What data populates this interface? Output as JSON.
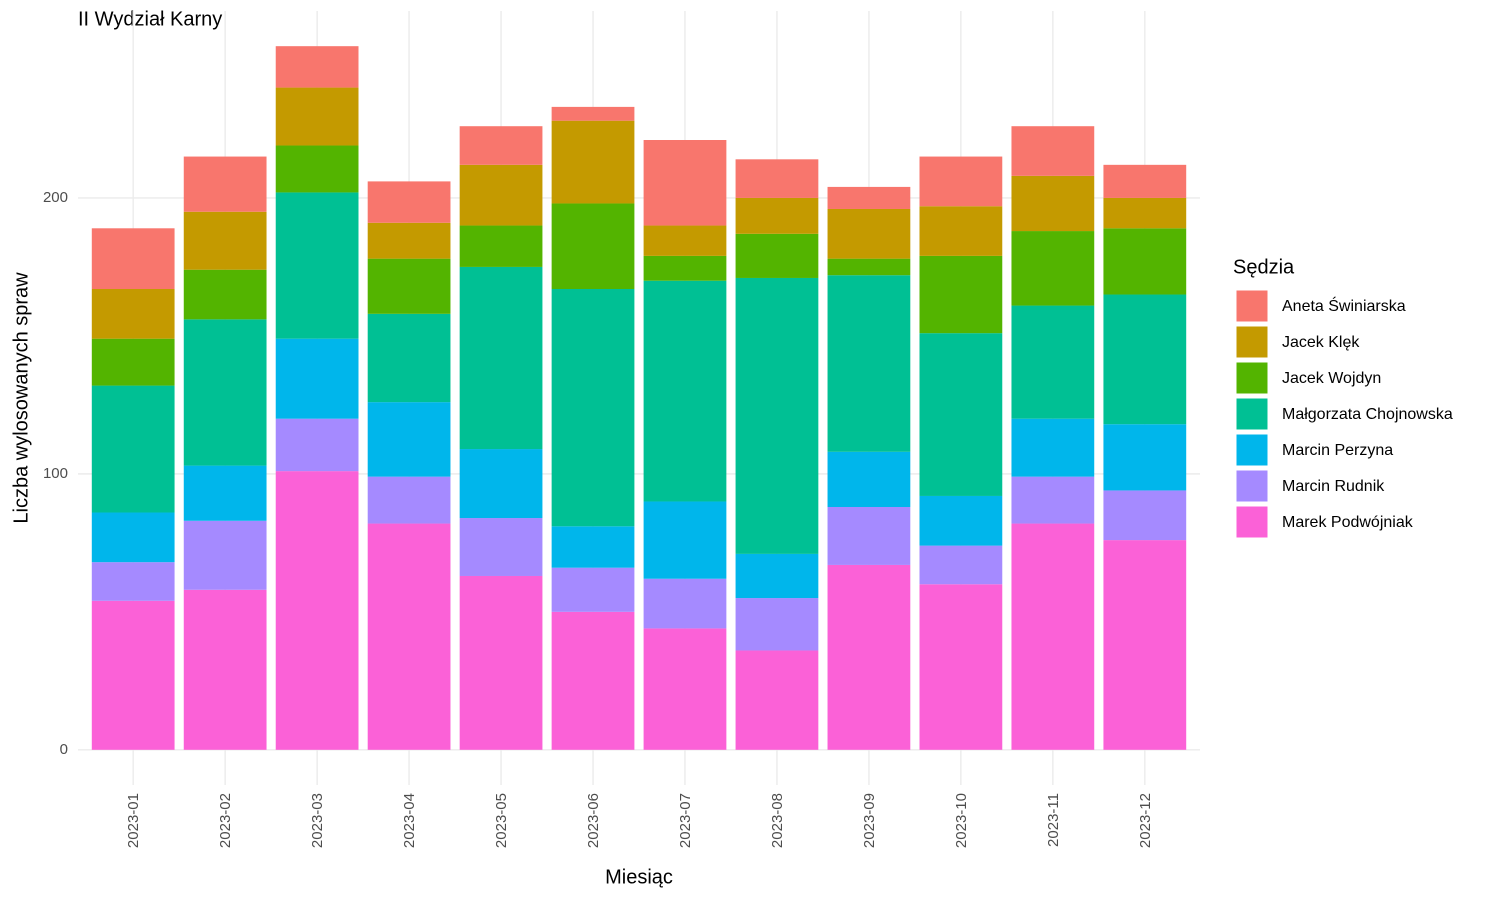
{
  "chart_data": {
    "type": "stacked_bar",
    "title": "II Wydział Karny",
    "x_label": "Miesiąc",
    "y_label": "Liczba wylosowanych spraw",
    "legend_title": "Sędzia",
    "categories": [
      "2023-01",
      "2023-02",
      "2023-03",
      "2023-04",
      "2023-05",
      "2023-06",
      "2023-07",
      "2023-08",
      "2023-09",
      "2023-10",
      "2023-11",
      "2023-12"
    ],
    "series": [
      {
        "name": "Aneta Świniarska",
        "color": "#F8766D",
        "values": [
          22,
          20,
          15,
          15,
          14,
          5,
          31,
          14,
          8,
          18,
          18,
          12
        ]
      },
      {
        "name": "Jacek Klęk",
        "color": "#C49A00",
        "values": [
          18,
          21,
          21,
          13,
          22,
          30,
          11,
          13,
          18,
          18,
          20,
          11
        ]
      },
      {
        "name": "Jacek Wojdyn",
        "color": "#53B400",
        "values": [
          17,
          18,
          17,
          20,
          15,
          31,
          9,
          16,
          6,
          28,
          27,
          24
        ]
      },
      {
        "name": "Małgorzata Chojnowska",
        "color": "#00C094",
        "values": [
          46,
          53,
          53,
          32,
          66,
          86,
          80,
          100,
          64,
          59,
          41,
          47
        ]
      },
      {
        "name": "Marcin Perzyna",
        "color": "#00B6EB",
        "values": [
          18,
          20,
          29,
          27,
          25,
          15,
          28,
          16,
          20,
          18,
          21,
          24
        ]
      },
      {
        "name": "Marcin Rudnik",
        "color": "#A58AFF",
        "values": [
          14,
          25,
          19,
          17,
          21,
          16,
          18,
          19,
          21,
          14,
          17,
          18
        ]
      },
      {
        "name": "Marek Podwójniak",
        "color": "#FB61D7",
        "values": [
          54,
          58,
          101,
          82,
          63,
          50,
          44,
          36,
          67,
          60,
          82,
          76
        ]
      }
    ],
    "ylim": [
      -12.75,
      267.75
    ],
    "yticks": [
      0,
      100,
      200
    ],
    "grid": true,
    "legend_position": "right"
  }
}
